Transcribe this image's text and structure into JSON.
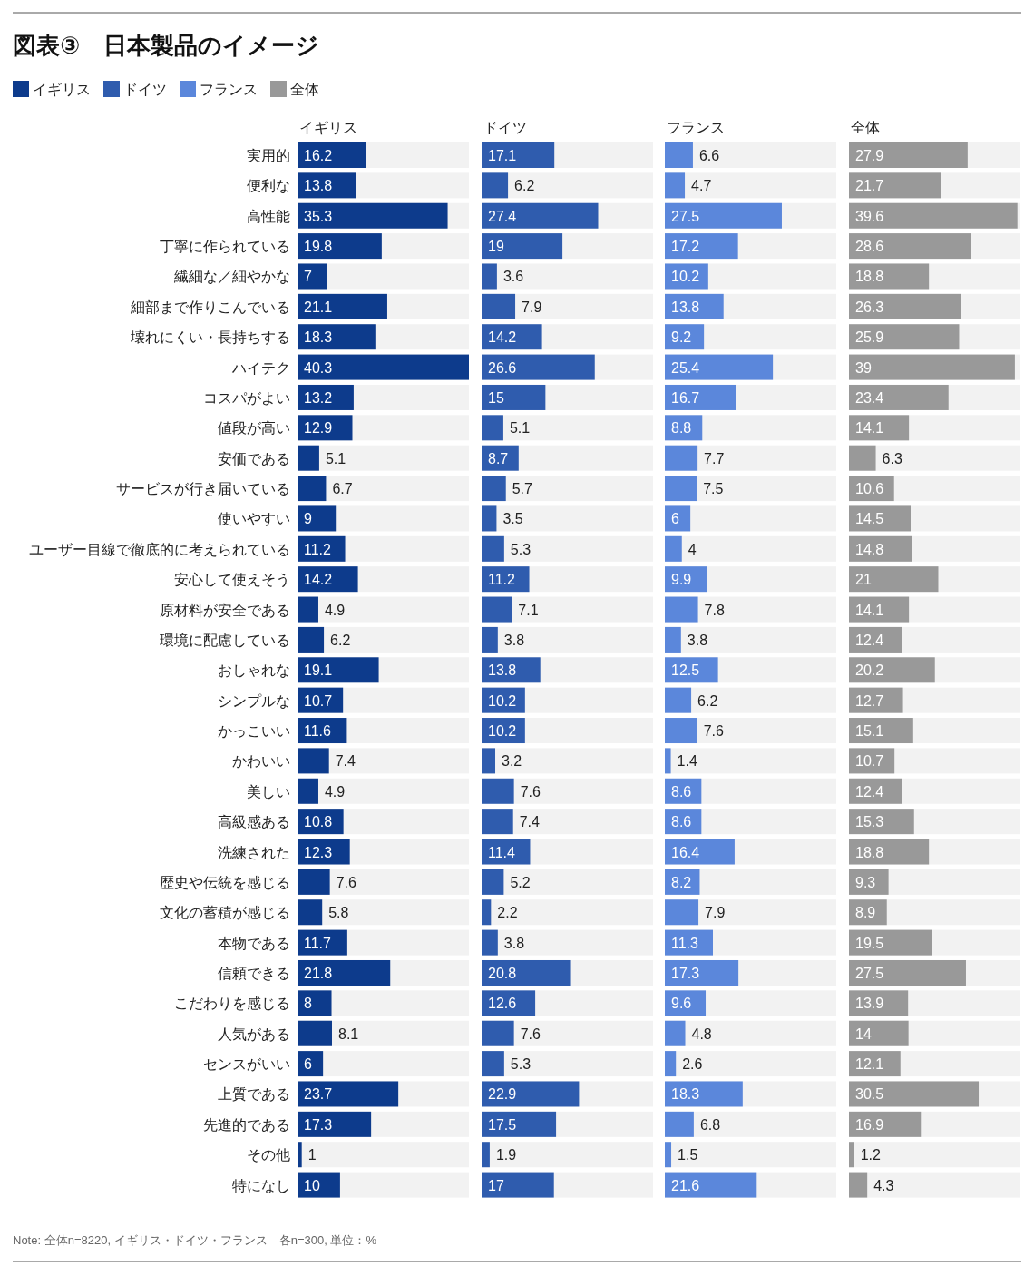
{
  "chart_data": [
    {
      "type": "bar",
      "orientation": "horizontal",
      "title": "図表③　日本製品のイメージ",
      "annotations": [
        "Note: 全体n=8220, イギリス・ドイツ・フランス　各n=300, 単位：%"
      ],
      "legend": "top left",
      "tick_labels": "y",
      "data_labels": true,
      "categories": [
        "実用的",
        "便利な",
        "高性能",
        "丁寧に作られている",
        "繊細な／細やかな",
        "細部まで作りこんでいる",
        "壊れにくい・長持ちする",
        "ハイテク",
        "コスパがよい",
        "値段が高い",
        "安価である",
        "サービスが行き届いている",
        "使いやすい",
        "ユーザー目線で徹底的に考えられている",
        "安心して使えそう",
        "原材料が安全である",
        "環境に配慮している",
        "おしゃれな",
        "シンプルな",
        "かっこいい",
        "かわいい",
        "美しい",
        "高級感ある",
        "洗練された",
        "歴史や伝統を感じる",
        "文化の蓄積が感じる",
        "本物である",
        "信頼できる",
        "こだわりを感じる",
        "人気がある",
        "センスがいい",
        "上質である",
        "先進的である",
        "その他",
        "特になし"
      ],
      "series": [
        {
          "name": "イギリス",
          "color": "#0d3b8c",
          "values": [
            16.2,
            13.8,
            35.3,
            19.8,
            7,
            21.1,
            18.3,
            40.3,
            13.2,
            12.9,
            5.1,
            6.7,
            9,
            11.2,
            14.2,
            4.9,
            6.2,
            19.1,
            10.7,
            11.6,
            7.4,
            4.9,
            10.8,
            12.3,
            7.6,
            5.8,
            11.7,
            21.8,
            8,
            8.1,
            6,
            23.7,
            17.3,
            1,
            10
          ]
        }
      ]
    },
    {
      "type": "bar",
      "orientation": "horizontal",
      "legend": "top left",
      "tick_labels": false,
      "data_labels": true,
      "categories": [
        "実用的",
        "便利な",
        "高性能",
        "丁寧に作られている",
        "繊細な／細やかな",
        "細部まで作りこんでいる",
        "壊れにくい・長持ちする",
        "ハイテク",
        "コスパがよい",
        "値段が高い",
        "安価である",
        "サービスが行き届いている",
        "使いやすい",
        "ユーザー目線で徹底的に考えられている",
        "安心して使えそう",
        "原材料が安全である",
        "環境に配慮している",
        "おしゃれな",
        "シンプルな",
        "かっこいい",
        "かわいい",
        "美しい",
        "高級感ある",
        "洗練された",
        "歴史や伝統を感じる",
        "文化の蓄積が感じる",
        "本物である",
        "信頼できる",
        "こだわりを感じる",
        "人気がある",
        "センスがいい",
        "上質である",
        "先進的である",
        "その他",
        "特になし"
      ],
      "series": [
        {
          "name": "ドイツ",
          "color": "#2f5cae",
          "values": [
            17.1,
            6.2,
            27.4,
            19,
            3.6,
            7.9,
            14.2,
            26.6,
            15,
            5.1,
            8.7,
            5.7,
            3.5,
            5.3,
            11.2,
            7.1,
            3.8,
            13.8,
            10.2,
            10.2,
            3.2,
            7.6,
            7.4,
            11.4,
            5.2,
            2.2,
            3.8,
            20.8,
            12.6,
            7.6,
            5.3,
            22.9,
            17.5,
            1.9,
            17
          ]
        }
      ]
    },
    {
      "type": "bar",
      "orientation": "horizontal",
      "legend": "top left",
      "tick_labels": false,
      "data_labels": true,
      "categories": [
        "実用的",
        "便利な",
        "高性能",
        "丁寧に作られている",
        "繊細な／細やかな",
        "細部まで作りこんでいる",
        "壊れにくい・長持ちする",
        "ハイテク",
        "コスパがよい",
        "値段が高い",
        "安価である",
        "サービスが行き届いている",
        "使いやすい",
        "ユーザー目線で徹底的に考えられている",
        "安心して使えそう",
        "原材料が安全である",
        "環境に配慮している",
        "おしゃれな",
        "シンプルな",
        "かっこいい",
        "かわいい",
        "美しい",
        "高級感ある",
        "洗練された",
        "歴史や伝統を感じる",
        "文化の蓄積が感じる",
        "本物である",
        "信頼できる",
        "こだわりを感じる",
        "人気がある",
        "センスがいい",
        "上質である",
        "先進的である",
        "その他",
        "特になし"
      ],
      "series": [
        {
          "name": "フランス",
          "color": "#5b87db",
          "values": [
            6.6,
            4.7,
            27.5,
            17.2,
            10.2,
            13.8,
            9.2,
            25.4,
            16.7,
            8.8,
            7.7,
            7.5,
            6,
            4,
            9.9,
            7.8,
            3.8,
            12.5,
            6.2,
            7.6,
            1.4,
            8.6,
            8.6,
            16.4,
            8.2,
            7.9,
            11.3,
            17.3,
            9.6,
            4.8,
            2.6,
            18.3,
            6.8,
            1.5,
            21.6
          ]
        }
      ]
    },
    {
      "type": "bar",
      "orientation": "horizontal",
      "legend": "top left",
      "tick_labels": false,
      "data_labels": true,
      "categories": [
        "実用的",
        "便利な",
        "高性能",
        "丁寧に作られている",
        "繊細な／細やかな",
        "細部まで作りこんでいる",
        "壊れにくい・長持ちする",
        "ハイテク",
        "コスパがよい",
        "値段が高い",
        "安価である",
        "サービスが行き届いている",
        "使いやすい",
        "ユーザー目線で徹底的に考えられている",
        "安心して使えそう",
        "原材料が安全である",
        "環境に配慮している",
        "おしゃれな",
        "シンプルな",
        "かっこいい",
        "かわいい",
        "美しい",
        "高級感ある",
        "洗練された",
        "歴史や伝統を感じる",
        "文化の蓄積が感じる",
        "本物である",
        "信頼できる",
        "こだわりを感じる",
        "人気がある",
        "センスがいい",
        "上質である",
        "先進的である",
        "その他",
        "特になし"
      ],
      "series": [
        {
          "name": "全体",
          "color": "#999999",
          "values": [
            27.9,
            21.7,
            39.6,
            28.6,
            18.8,
            26.3,
            25.9,
            39,
            23.4,
            14.1,
            6.3,
            10.6,
            14.5,
            14.8,
            21,
            14.1,
            12.4,
            20.2,
            12.7,
            15.1,
            10.7,
            12.4,
            15.3,
            18.8,
            9.3,
            8.9,
            19.5,
            27.5,
            13.9,
            14,
            12.1,
            30.5,
            16.9,
            1.2,
            4.3
          ]
        }
      ]
    }
  ]
}
